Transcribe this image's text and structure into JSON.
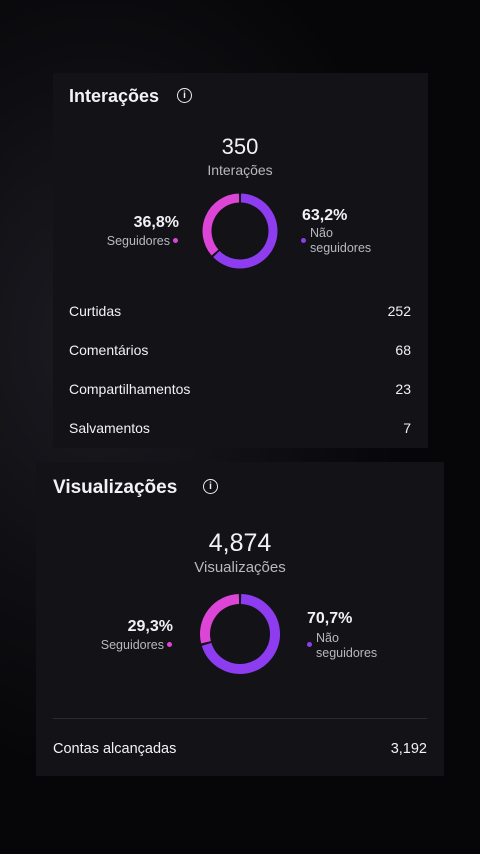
{
  "cards": [
    {
      "title": "Interações",
      "total": 350,
      "total_label": "Interações",
      "segments": [
        {
          "name": "Seguidores",
          "value": 36.8,
          "label": "36,8%",
          "color": "#dc45d6"
        },
        {
          "name": "Não seguidores",
          "value": 63.2,
          "label": "63,2%",
          "color": "#8d3cf0"
        }
      ],
      "rows": [
        {
          "label": "Curtidas",
          "value": 252
        },
        {
          "label": "Comentários",
          "value": 68
        },
        {
          "label": "Compartilhamentos",
          "value": 23
        },
        {
          "label": "Salvamentos",
          "value": 7
        }
      ]
    },
    {
      "title": "Visualizações",
      "total": "4,874",
      "total_label": "Visualizações",
      "segments": [
        {
          "name": "Seguidores",
          "value": 29.3,
          "label": "29,3%",
          "color": "#dc45d6"
        },
        {
          "name": "Não seguidores",
          "value": 70.7,
          "label": "70,7%",
          "color": "#8d3cf0"
        }
      ],
      "rows": [
        {
          "label": "Contas alcançadas",
          "value": "3,192"
        }
      ]
    }
  ]
}
